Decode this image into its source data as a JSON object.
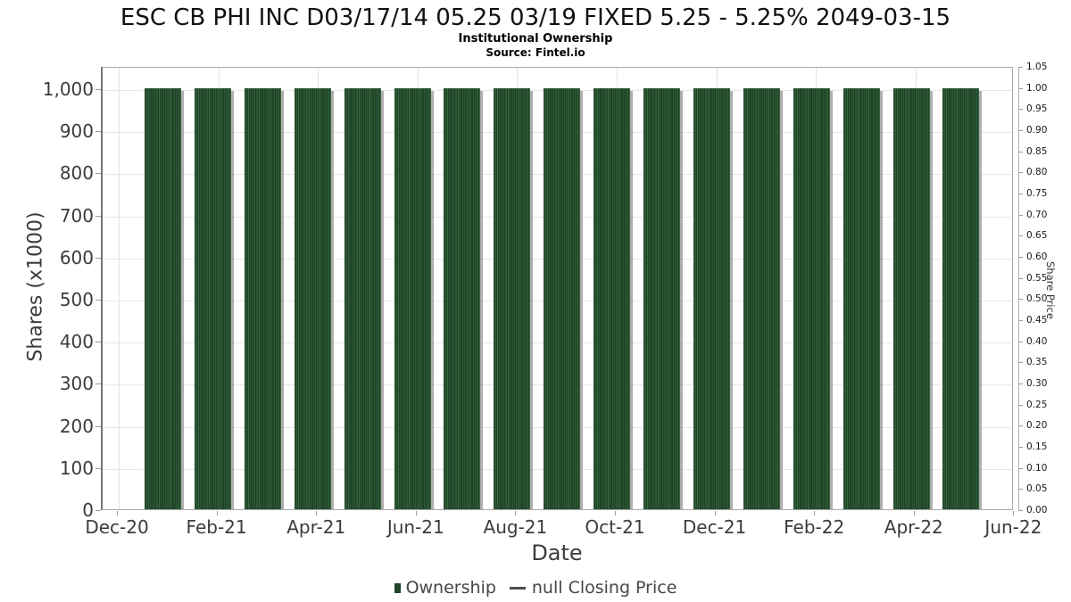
{
  "header": {
    "title": "ESC CB PHI INC D03/17/14 05.25 03/19 FIXED 5.25 - 5.25% 2049-03-15",
    "subtitle": "Institutional Ownership",
    "source": "Source: Fintel.io"
  },
  "axes": {
    "x_title": "Date",
    "y_left_title": "Shares (x1000)",
    "y_right_title": "Share Price"
  },
  "legend": {
    "ownership_label": "Ownership",
    "price_label": "null Closing Price"
  },
  "colors": {
    "bar_dark": "#1e4426",
    "bar_light_stripe": "#3a6741",
    "bar_shadow": "#6e6e6e",
    "grid": "#e7e7e7",
    "text": "#3c3c3c"
  },
  "chart_data": {
    "type": "bar",
    "title": "ESC CB PHI INC D03/17/14 05.25 03/19 FIXED 5.25 - 5.25% 2049-03-15",
    "subtitle": "Institutional Ownership",
    "source": "Source: Fintel.io",
    "xlabel": "Date",
    "ylabel": "Shares (x1000)",
    "ylabel_right": "Share Price",
    "grid": true,
    "legend_position": "bottom",
    "categories": [
      "Jan-21",
      "Feb-21",
      "Mar-21",
      "Apr-21",
      "May-21",
      "Jun-21",
      "Jul-21",
      "Aug-21",
      "Sep-21",
      "Oct-21",
      "Nov-21",
      "Dec-21",
      "Jan-22",
      "Feb-22",
      "Mar-22",
      "Apr-22",
      "May-22"
    ],
    "series": [
      {
        "name": "Ownership",
        "type": "bar",
        "color": "#1e4426",
        "values": [
          1000,
          1000,
          1000,
          1000,
          1000,
          1000,
          1000,
          1000,
          1000,
          1000,
          1000,
          1000,
          1000,
          1000,
          1000,
          1000,
          1000
        ]
      },
      {
        "name": "null Closing Price",
        "type": "line",
        "color": "#4d4d4d",
        "values": []
      }
    ],
    "x_axis": {
      "tick_labels": [
        "Dec-20",
        "Feb-21",
        "Apr-21",
        "Jun-21",
        "Aug-21",
        "Oct-21",
        "Dec-21",
        "Feb-22",
        "Apr-22",
        "Jun-22"
      ]
    },
    "y_left": {
      "lim": [
        0,
        1052
      ],
      "tick_values": [
        0,
        100,
        200,
        300,
        400,
        500,
        600,
        700,
        800,
        900,
        1000
      ],
      "tick_labels": [
        "0",
        "100",
        "200",
        "300",
        "400",
        "500",
        "600",
        "700",
        "800",
        "900",
        "1,000"
      ]
    },
    "y_right": {
      "lim": [
        0,
        1.05
      ],
      "tick_labels": [
        "0.00",
        "0.05",
        "0.10",
        "0.15",
        "0.20",
        "0.25",
        "0.30",
        "0.35",
        "0.40",
        "0.45",
        "0.50",
        "0.55",
        "0.60",
        "0.65",
        "0.70",
        "0.75",
        "0.80",
        "0.85",
        "0.90",
        "0.95",
        "1.00",
        "1.05"
      ]
    }
  }
}
